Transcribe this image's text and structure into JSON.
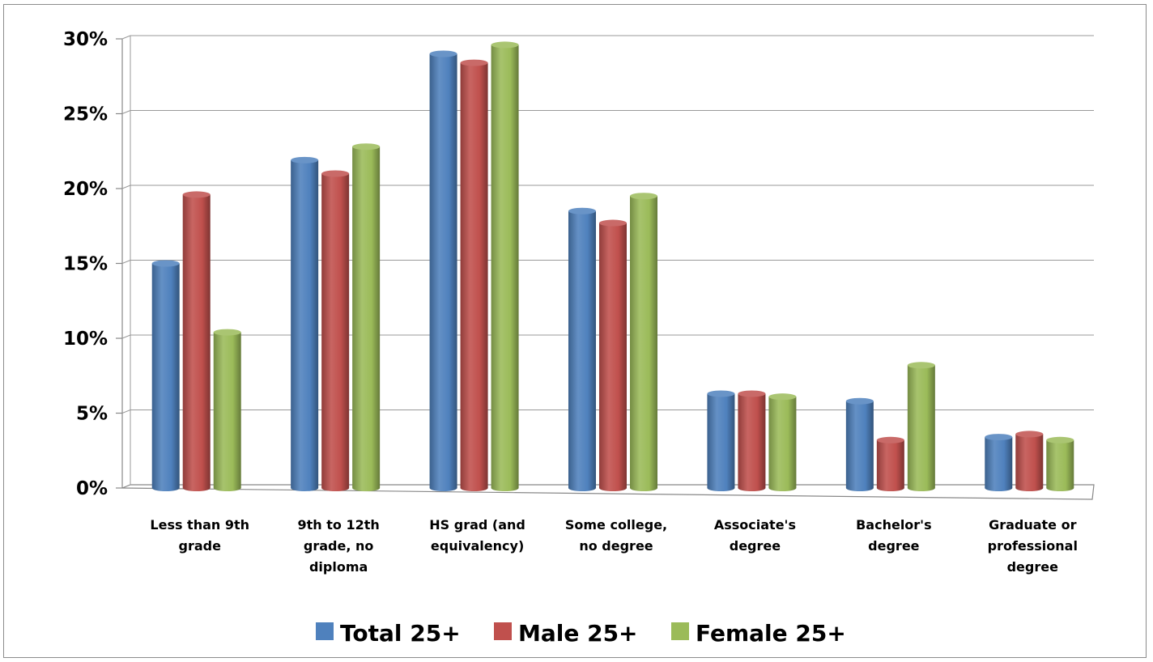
{
  "chart_data": {
    "type": "bar",
    "title": "",
    "xlabel": "",
    "ylabel": "",
    "ylim": [
      0,
      30
    ],
    "yticks": [
      "0%",
      "5%",
      "10%",
      "15%",
      "20%",
      "25%",
      "30%"
    ],
    "grid": true,
    "legend_position": "bottom",
    "style": "3d-cylinder",
    "categories": [
      [
        "Less than 9th",
        "grade"
      ],
      [
        "9th to 12th",
        "grade, no",
        "diploma"
      ],
      [
        "HS grad (and",
        "equivalency)"
      ],
      [
        "Some college,",
        "no degree"
      ],
      [
        "Associate's",
        "degree"
      ],
      [
        "Bachelor's",
        "degree"
      ],
      [
        "Graduate or",
        "professional",
        "degree"
      ]
    ],
    "series": [
      {
        "name": "Total 25+",
        "color": "#4f81bd",
        "values": [
          15.0,
          21.9,
          29.0,
          18.5,
          6.3,
          5.8,
          3.4
        ]
      },
      {
        "name": "Male 25+",
        "color": "#c0504d",
        "values": [
          19.6,
          21.0,
          28.4,
          17.7,
          6.3,
          3.2,
          3.6
        ]
      },
      {
        "name": "Female 25+",
        "color": "#9bbb59",
        "values": [
          10.4,
          22.8,
          29.6,
          19.5,
          6.1,
          8.2,
          3.2
        ]
      }
    ]
  }
}
